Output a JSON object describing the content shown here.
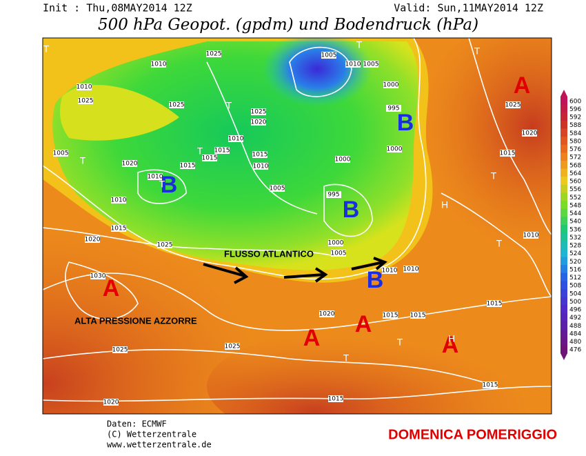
{
  "header": {
    "init": "Init : Thu,08MAY2014 12Z",
    "valid": "Valid: Sun,11MAY2014 12Z",
    "title": "500 hPa Geopot. (gpdm) und Bodendruck (hPa)"
  },
  "annotations": {
    "flow": "FLUSSO ATLANTICO",
    "azores": "ALTA PRESSIONE AZZORRE",
    "caption": "DOMENICA POMERIGGIO"
  },
  "pressure_centers": [
    "A",
    "B",
    "B",
    "B",
    "B",
    "A",
    "A",
    "A",
    "A"
  ],
  "symbols": [
    "T",
    "T",
    "T",
    "T",
    "T",
    "T",
    "T",
    "H",
    "T",
    "T",
    "T",
    "T",
    "H"
  ],
  "isobar_labels": [
    "1025",
    "1010",
    "1010",
    "1025",
    "1025",
    "1005",
    "1010",
    "1005",
    "1000",
    "995",
    "1025",
    "1020",
    "1010",
    "1015",
    "1015",
    "1015",
    "1010",
    "1015",
    "1005",
    "1020",
    "1010",
    "1000",
    "1005",
    "1000",
    "995",
    "1010",
    "1015",
    "1020",
    "1025",
    "1000",
    "1005",
    "1030",
    "1010",
    "1010",
    "1020",
    "1015",
    "1015",
    "1015",
    "1025",
    "1025",
    "1020",
    "1015",
    "1015",
    "1010",
    "1015",
    "1020",
    "1025"
  ],
  "colorbar": {
    "labels": [
      600,
      596,
      592,
      588,
      584,
      580,
      576,
      572,
      568,
      564,
      560,
      556,
      552,
      548,
      544,
      540,
      536,
      532,
      528,
      524,
      520,
      516,
      512,
      508,
      504,
      500,
      496,
      492,
      488,
      484,
      480,
      476
    ]
  },
  "credits": [
    "Daten: ECMWF",
    "(C) Wetterzentrale",
    "www.wetterzentrale.de"
  ]
}
